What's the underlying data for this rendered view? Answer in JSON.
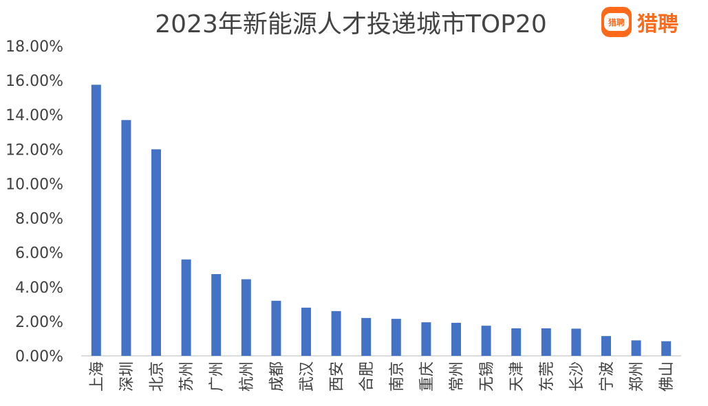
{
  "header": {
    "title": "2023年新能源人才投递城市TOP20",
    "brand_name": "猎聘",
    "brand_icon_text": "猎聘",
    "brand_color": "#ff6a1a"
  },
  "chart_data": {
    "type": "bar",
    "title": "2023年新能源人才投递城市TOP20",
    "xlabel": "",
    "ylabel": "",
    "categories": [
      "上海",
      "深圳",
      "北京",
      "苏州",
      "广州",
      "杭州",
      "成都",
      "武汉",
      "西安",
      "合肥",
      "南京",
      "重庆",
      "常州",
      "无锡",
      "天津",
      "东莞",
      "长沙",
      "宁波",
      "郑州",
      "佛山"
    ],
    "values": [
      15.75,
      13.7,
      12.0,
      5.6,
      4.75,
      4.45,
      3.2,
      2.8,
      2.6,
      2.2,
      2.15,
      1.95,
      1.92,
      1.75,
      1.6,
      1.6,
      1.58,
      1.15,
      0.9,
      0.85
    ],
    "ylim": [
      0,
      18
    ],
    "yticks": [
      0,
      2,
      4,
      6,
      8,
      10,
      12,
      14,
      16,
      18
    ],
    "ytick_labels": [
      "0.00%",
      "2.00%",
      "4.00%",
      "6.00%",
      "8.00%",
      "10.00%",
      "12.00%",
      "14.00%",
      "16.00%",
      "18.00%"
    ],
    "value_format": "percent",
    "bar_color": "#4472c4",
    "grid": false,
    "legend": "none"
  }
}
